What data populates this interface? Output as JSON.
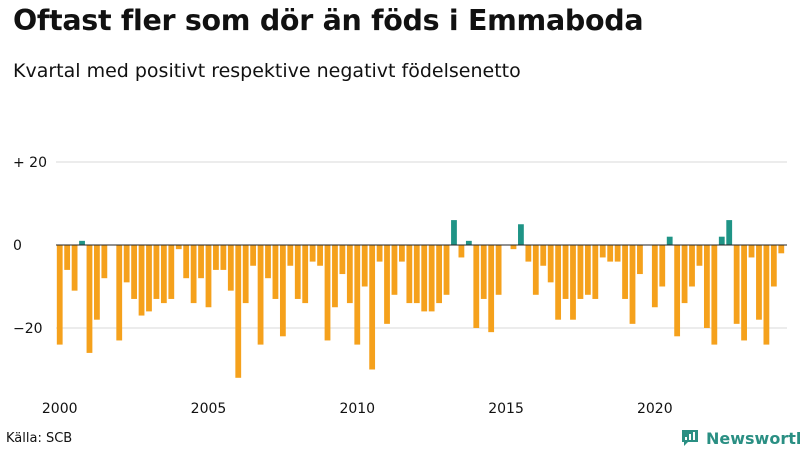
{
  "title": "Oftast fler som dör än föds i Emmaboda",
  "subtitle": "Kvartal med positivt respektive negativt födelsenetto",
  "source": "Källa: SCB",
  "brand": "Newsworthy",
  "colors": {
    "negative": "#f5a11c",
    "positive": "#1f9486",
    "grid": "#d9d9d9",
    "zero_line": "#222222",
    "brand": "#2a8f83"
  },
  "chart_data": {
    "type": "bar",
    "title": "Oftast fler som dör än föds i Emmaboda",
    "subtitle": "Kvartal med positivt respektive negativt födelsenetto",
    "xlabel": "",
    "ylabel": "",
    "ylim": [
      -34,
      24
    ],
    "grid": true,
    "y_ticks": [
      {
        "value": 20,
        "label": "+ 20"
      },
      {
        "value": 0,
        "label": "0"
      },
      {
        "value": -20,
        "label": "−20"
      }
    ],
    "x_ticks": [
      {
        "index": 0,
        "label": "2000"
      },
      {
        "index": 20,
        "label": "2005"
      },
      {
        "index": 40,
        "label": "2010"
      },
      {
        "index": 60,
        "label": "2015"
      },
      {
        "index": 80,
        "label": "2020"
      }
    ],
    "start_year": 2000,
    "values": [
      -24,
      -6,
      -11,
      1,
      -26,
      -18,
      -8,
      0,
      -23,
      -9,
      -13,
      -17,
      -16,
      -13,
      -14,
      -13,
      -1,
      -8,
      -14,
      -8,
      -15,
      -6,
      -6,
      -11,
      -32,
      -14,
      -5,
      -24,
      -8,
      -13,
      -22,
      -5,
      -13,
      -14,
      -4,
      -5,
      -23,
      -15,
      -7,
      -14,
      -24,
      -10,
      -30,
      -4,
      -19,
      -12,
      -4,
      -14,
      -14,
      -16,
      -16,
      -14,
      -12,
      6,
      -3,
      1,
      -20,
      -13,
      -21,
      -12,
      0,
      -1,
      5,
      -4,
      -12,
      -5,
      -9,
      -18,
      -13,
      -18,
      -13,
      -12,
      -13,
      -3,
      -4,
      -4,
      -13,
      -19,
      -7,
      0,
      -15,
      -10,
      2,
      -22,
      -14,
      -10,
      -5,
      -20,
      -24,
      2,
      6,
      -19,
      -23,
      -3,
      -18,
      -24,
      -10,
      -2
    ]
  }
}
